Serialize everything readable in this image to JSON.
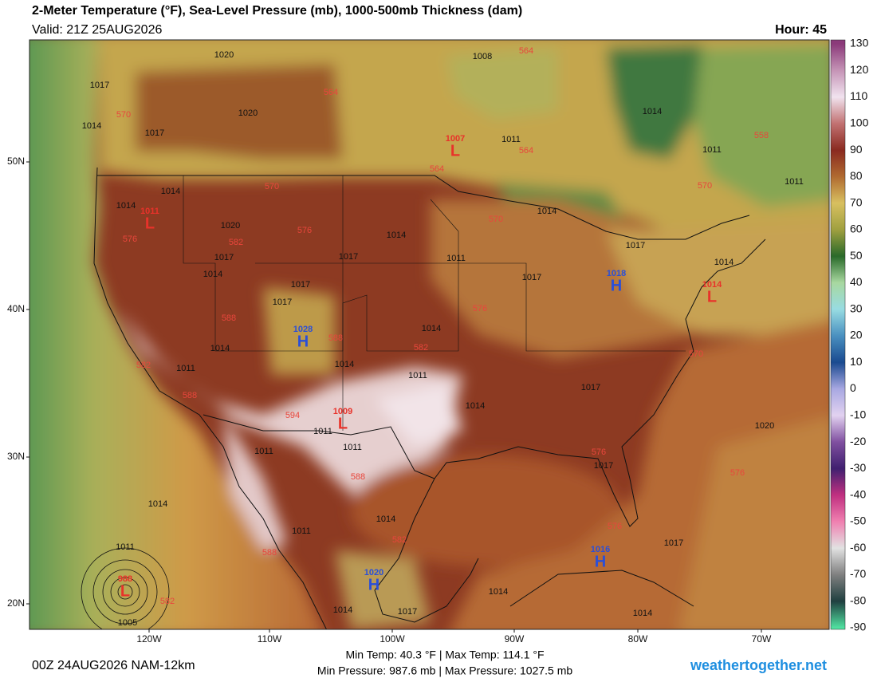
{
  "header": {
    "title": "2-Meter Temperature (°F), Sea-Level Pressure (mb), 1000-500mb Thickness (dam)",
    "valid": "Valid: 21Z 25AUG2026",
    "hour": "Hour: 45"
  },
  "colorbar": {
    "ticks": [
      130,
      120,
      110,
      100,
      90,
      80,
      70,
      60,
      50,
      40,
      30,
      20,
      10,
      0,
      -10,
      -20,
      -30,
      -40,
      -50,
      -60,
      -70,
      -80,
      -90
    ],
    "colors": [
      "#8b3a7a",
      "#c594b6",
      "#f1e3ef",
      "#c27272",
      "#8a2a20",
      "#b06a30",
      "#d8c060",
      "#a0a040",
      "#2a6a2a",
      "#a8d8a0",
      "#98dce2",
      "#4a90c0",
      "#1a4a90",
      "#a8a8e2",
      "#e2d2f0",
      "#8050a0",
      "#402070",
      "#c03080",
      "#f080b0",
      "#e2e2e2",
      "#808080",
      "#204040",
      "#50e0a0"
    ]
  },
  "axes": {
    "lat": [
      "50N",
      "40N",
      "30N",
      "20N"
    ],
    "lon": [
      "120W",
      "110W",
      "100W",
      "90W",
      "80W",
      "70W"
    ]
  },
  "isobar_labels": [
    "1020",
    "1008",
    "1017",
    "1020",
    "1014",
    "1017",
    "1011",
    "1014",
    "1011",
    "1011",
    "1014",
    "1014",
    "1020",
    "1014",
    "1017",
    "1014",
    "1017",
    "1014",
    "1011",
    "1017",
    "1017",
    "1014",
    "1017",
    "1017",
    "1014",
    "1014",
    "1011",
    "1014",
    "1011",
    "1017",
    "1014",
    "1011",
    "1011",
    "1011",
    "1020",
    "1017",
    "1014",
    "1014",
    "1011",
    "1011",
    "1017",
    "1014",
    "1014",
    "1005",
    "1014",
    "1017"
  ],
  "thickness_labels": [
    "564",
    "564",
    "570",
    "564",
    "564",
    "558",
    "570",
    "570",
    "570",
    "576",
    "582",
    "576",
    "576",
    "588",
    "588",
    "582",
    "570",
    "582",
    "588",
    "594",
    "588",
    "576",
    "576",
    "582",
    "576",
    "588",
    "582"
  ],
  "centers": [
    {
      "letter": "L",
      "pressure": "1007"
    },
    {
      "letter": "L",
      "pressure": "1011"
    },
    {
      "letter": "H",
      "pressure": "1028"
    },
    {
      "letter": "L",
      "pressure": "1009"
    },
    {
      "letter": "H",
      "pressure": "1018"
    },
    {
      "letter": "L",
      "pressure": "1014"
    },
    {
      "letter": "H",
      "pressure": "1016"
    },
    {
      "letter": "H",
      "pressure": "1020"
    },
    {
      "letter": "L",
      "pressure": "988"
    }
  ],
  "footer": {
    "model": "00Z 24AUG2026 NAM-12km",
    "temp": "Min Temp:  40.3 °F | Max Temp: 114.1 °F",
    "pressure": "Min Pressure: 987.6 mb | Max Pressure: 1027.5 mb",
    "site": "weathertogether.net"
  }
}
